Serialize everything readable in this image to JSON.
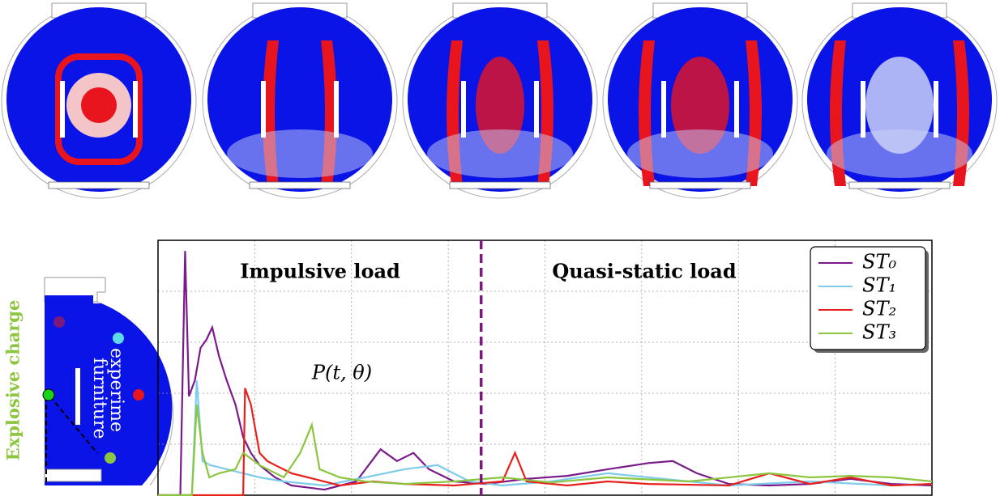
{
  "chart_data": {
    "type": "line",
    "annotations": [
      "Impulsive load",
      "Quasi-static load",
      "P(t, θ)"
    ],
    "divider_x": 3.34,
    "divider_color": "#7b1a7e",
    "xlim": [
      0,
      8
    ],
    "xticks": [
      0,
      1,
      2,
      3,
      4,
      5,
      6,
      7,
      8
    ],
    "ylim": [
      0,
      5
    ],
    "yticks": [
      0,
      1,
      2,
      3,
      4,
      5
    ],
    "grid": true,
    "legend": "upper right",
    "series": [
      {
        "name": "ST₀",
        "color": "#7b1a8a",
        "x": [
          0,
          0.23,
          0.28,
          0.32,
          0.38,
          0.44,
          0.5,
          0.56,
          0.63,
          0.71,
          0.8,
          0.88,
          0.96,
          1.05,
          1.21,
          1.38,
          1.72,
          2.05,
          2.3,
          2.47,
          2.64,
          2.8,
          3.06,
          3.39,
          3.81,
          4.23,
          4.65,
          5.07,
          5.32,
          5.57,
          5.9,
          6.32,
          6.74,
          7.16,
          7.58,
          8
        ],
        "values": [
          0,
          0,
          4.79,
          1.94,
          2.25,
          2.89,
          3.05,
          3.29,
          2.73,
          2.25,
          1.78,
          1.14,
          0.83,
          0.59,
          0.35,
          0.19,
          0.11,
          0.27,
          0.9,
          0.67,
          0.83,
          0.51,
          0.27,
          0.22,
          0.32,
          0.38,
          0.51,
          0.63,
          0.67,
          0.43,
          0.22,
          0.19,
          0.22,
          0.32,
          0.22,
          0.19
        ]
      },
      {
        "name": "ST₁",
        "color": "#7ecbea",
        "x": [
          0,
          0.35,
          0.4,
          0.46,
          0.54,
          0.71,
          0.88,
          1.05,
          1.3,
          1.72,
          2.14,
          2.55,
          2.89,
          3.22,
          3.56,
          4.06,
          4.65,
          5.07,
          5.49,
          5.9,
          6.74,
          7.58,
          8
        ],
        "values": [
          0,
          0,
          2.25,
          0.67,
          0.59,
          0.51,
          0.43,
          0.35,
          0.27,
          0.19,
          0.35,
          0.51,
          0.59,
          0.27,
          0.19,
          0.27,
          0.43,
          0.35,
          0.27,
          0.19,
          0.27,
          0.19,
          0.22
        ]
      },
      {
        "name": "ST₂",
        "color": "#e8201c",
        "x": [
          0,
          0.88,
          0.9,
          0.96,
          1.05,
          1.13,
          1.21,
          1.38,
          1.55,
          1.88,
          2.22,
          2.55,
          3.06,
          3.56,
          3.69,
          3.81,
          4.23,
          4.65,
          5.07,
          5.9,
          6.32,
          6.74,
          7.16,
          7.58,
          8
        ],
        "values": [
          0,
          0,
          2.1,
          1.78,
          0.83,
          0.67,
          0.59,
          0.43,
          0.35,
          0.19,
          0.27,
          0.22,
          0.19,
          0.27,
          0.83,
          0.27,
          0.19,
          0.27,
          0.22,
          0.19,
          0.43,
          0.22,
          0.35,
          0.19,
          0.22
        ]
      },
      {
        "name": "ST₃",
        "color": "#8cc63f",
        "x": [
          0,
          0.35,
          0.4,
          0.46,
          0.53,
          0.63,
          0.8,
          0.88,
          1.05,
          1.3,
          1.47,
          1.59,
          1.67,
          1.88,
          2.14,
          2.55,
          3.06,
          3.56,
          4.06,
          4.65,
          5.49,
          6.32,
          6.74,
          7.16,
          7.58,
          8
        ],
        "values": [
          0,
          0,
          1.78,
          0.83,
          0.35,
          0.43,
          0.51,
          0.83,
          0.59,
          0.35,
          0.83,
          1.38,
          0.51,
          0.35,
          0.27,
          0.22,
          0.27,
          0.35,
          0.25,
          0.35,
          0.27,
          0.43,
          0.35,
          0.38,
          0.35,
          0.27
        ]
      }
    ]
  },
  "left_image": {
    "labels": [
      "Explosive charge",
      "experime",
      "furniture"
    ]
  }
}
